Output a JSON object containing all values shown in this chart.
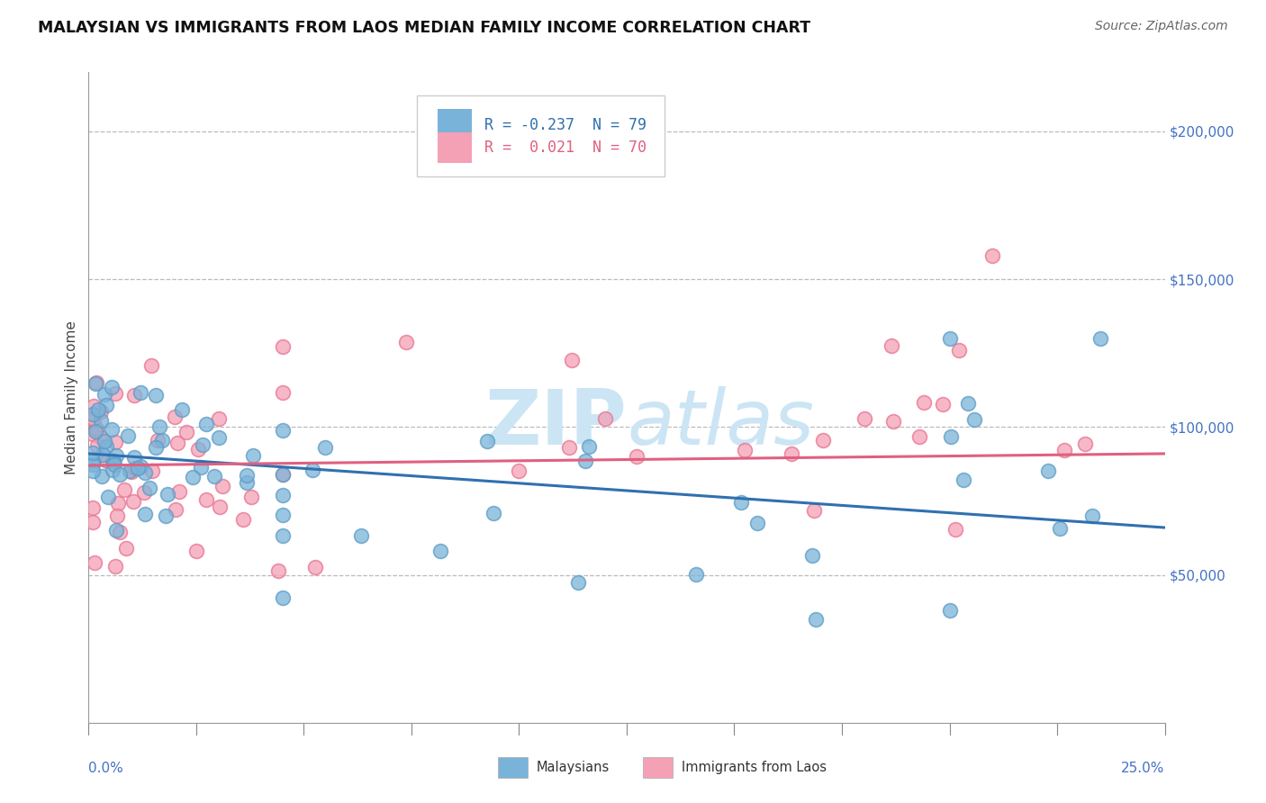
{
  "title": "MALAYSIAN VS IMMIGRANTS FROM LAOS MEDIAN FAMILY INCOME CORRELATION CHART",
  "source": "Source: ZipAtlas.com",
  "ylabel": "Median Family Income",
  "r_malaysian": -0.237,
  "n_malaysian": 79,
  "r_laos": 0.021,
  "n_laos": 70,
  "blue_color": "#7ab3d9",
  "pink_color": "#f4a0b5",
  "blue_edge_color": "#5a9bc4",
  "pink_edge_color": "#e87090",
  "blue_line_color": "#3070b0",
  "pink_line_color": "#e06080",
  "watermark_color": "#cce5f5",
  "title_color": "#111111",
  "tick_label_color": "#4472c4",
  "legend_r_color_blue": "#3070b0",
  "legend_r_color_pink": "#e06080",
  "legend_n_color": "#3070b0",
  "ylim_min": 0,
  "ylim_max": 220000,
  "xlim_min": 0.0,
  "xlim_max": 0.25,
  "y_ticks": [
    50000,
    100000,
    150000,
    200000
  ],
  "y_tick_labels": [
    "$50,000",
    "$100,000",
    "$150,000",
    "$200,000"
  ],
  "bg_color": "#ffffff"
}
